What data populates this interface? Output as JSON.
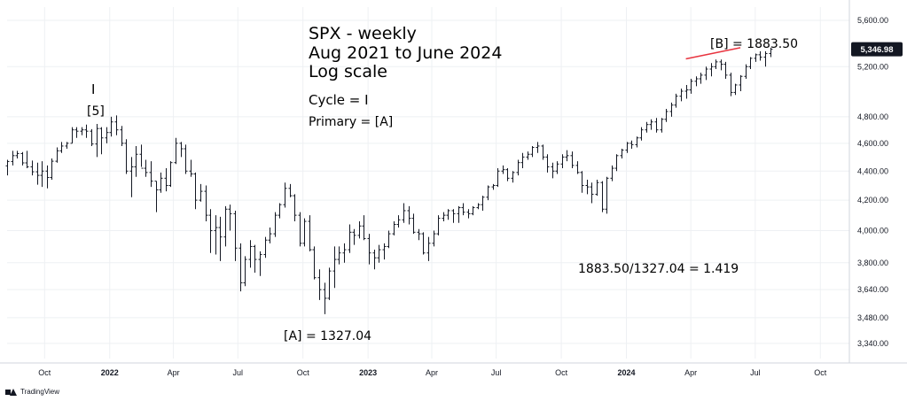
{
  "chart_data": {
    "type": "ohlc",
    "title": "SPX - weekly",
    "subtitle_lines": [
      "Aug 2021 to June 2024",
      "Log scale"
    ],
    "y_scale": "log",
    "ylim": [
      3260,
      5720
    ],
    "x_range": [
      "2021-08-09",
      "2024-11-11"
    ],
    "grid": true,
    "y_ticks": [
      {
        "value": 3340,
        "label": "3,340.00"
      },
      {
        "value": 3480,
        "label": "3,480.00"
      },
      {
        "value": 3640,
        "label": "3,640.00"
      },
      {
        "value": 3800,
        "label": "3,800.00"
      },
      {
        "value": 4000,
        "label": "4,000.00"
      },
      {
        "value": 4200,
        "label": "4,200.00"
      },
      {
        "value": 4400,
        "label": "4,400.00"
      },
      {
        "value": 4600,
        "label": "4,600.00"
      },
      {
        "value": 4800,
        "label": "4,800.00"
      },
      {
        "value": 5200,
        "label": "5,200.00"
      },
      {
        "value": 5600,
        "label": "5,600.00"
      }
    ],
    "x_ticks": [
      {
        "date": "2021-10-01",
        "label": "Oct",
        "bold": false
      },
      {
        "date": "2022-01-01",
        "label": "2022",
        "bold": true
      },
      {
        "date": "2022-04-01",
        "label": "Apr",
        "bold": false
      },
      {
        "date": "2022-07-01",
        "label": "Jul",
        "bold": false
      },
      {
        "date": "2022-10-01",
        "label": "Oct",
        "bold": false
      },
      {
        "date": "2023-01-01",
        "label": "2023",
        "bold": true
      },
      {
        "date": "2023-04-01",
        "label": "Apr",
        "bold": false
      },
      {
        "date": "2023-07-01",
        "label": "Jul",
        "bold": false
      },
      {
        "date": "2023-10-01",
        "label": "Oct",
        "bold": false
      },
      {
        "date": "2024-01-01",
        "label": "2024",
        "bold": true
      },
      {
        "date": "2024-04-01",
        "label": "Apr",
        "bold": false
      },
      {
        "date": "2024-07-01",
        "label": "Jul",
        "bold": false
      },
      {
        "date": "2024-10-01",
        "label": "Oct",
        "bold": false
      }
    ],
    "last_price": {
      "value": 5346.98,
      "label": "5,346.98"
    },
    "series": [
      {
        "start": "2021-08-09",
        "interval_days": 7,
        "color": "#131722",
        "ohlc": [
          [
            4437,
            4480,
            4370,
            4468
          ],
          [
            4468,
            4545,
            4440,
            4510
          ],
          [
            4510,
            4545,
            4490,
            4525
          ],
          [
            4525,
            4536,
            4440,
            4458
          ],
          [
            4458,
            4545,
            4420,
            4430
          ],
          [
            4430,
            4475,
            4370,
            4395
          ],
          [
            4395,
            4460,
            4305,
            4370
          ],
          [
            4370,
            4470,
            4290,
            4400
          ],
          [
            4400,
            4440,
            4280,
            4355
          ],
          [
            4355,
            4490,
            4340,
            4470
          ],
          [
            4470,
            4570,
            4460,
            4545
          ],
          [
            4545,
            4610,
            4530,
            4580
          ],
          [
            4580,
            4610,
            4560,
            4600
          ],
          [
            4600,
            4720,
            4600,
            4700
          ],
          [
            4700,
            4720,
            4640,
            4690
          ],
          [
            4690,
            4720,
            4660,
            4700
          ],
          [
            4700,
            4740,
            4640,
            4690
          ],
          [
            4690,
            4705,
            4580,
            4595
          ],
          [
            4595,
            4745,
            4500,
            4710
          ],
          [
            4710,
            4720,
            4520,
            4640
          ],
          [
            4640,
            4720,
            4600,
            4680
          ],
          [
            4680,
            4800,
            4650,
            4760
          ],
          [
            4760,
            4810,
            4660,
            4700
          ],
          [
            4700,
            4730,
            4580,
            4600
          ],
          [
            4600,
            4630,
            4380,
            4400
          ],
          [
            4400,
            4500,
            4220,
            4430
          ],
          [
            4430,
            4580,
            4360,
            4520
          ],
          [
            4520,
            4590,
            4430,
            4420
          ],
          [
            4420,
            4480,
            4360,
            4390
          ],
          [
            4390,
            4470,
            4290,
            4330
          ],
          [
            4330,
            4330,
            4120,
            4270
          ],
          [
            4270,
            4390,
            4250,
            4350
          ],
          [
            4350,
            4420,
            4260,
            4300
          ],
          [
            4300,
            4470,
            4290,
            4460
          ],
          [
            4460,
            4640,
            4450,
            4600
          ],
          [
            4600,
            4610,
            4500,
            4560
          ],
          [
            4560,
            4590,
            4380,
            4400
          ],
          [
            4400,
            4480,
            4360,
            4380
          ],
          [
            4380,
            4390,
            4140,
            4200
          ],
          [
            4200,
            4310,
            4190,
            4260
          ],
          [
            4260,
            4300,
            4060,
            4100
          ],
          [
            4100,
            4140,
            3860,
            4000
          ],
          [
            4000,
            4100,
            3850,
            4020
          ],
          [
            4020,
            4090,
            3810,
            3960
          ],
          [
            3960,
            4160,
            3900,
            4140
          ],
          [
            4140,
            4170,
            4000,
            4110
          ],
          [
            4110,
            4130,
            3810,
            3890
          ],
          [
            3890,
            3920,
            3630,
            3680
          ],
          [
            3680,
            3840,
            3660,
            3820
          ],
          [
            3820,
            3940,
            3770,
            3900
          ],
          [
            3900,
            3910,
            3740,
            3820
          ],
          [
            3820,
            3870,
            3720,
            3850
          ],
          [
            3850,
            3960,
            3830,
            3940
          ],
          [
            3940,
            4020,
            3920,
            3980
          ],
          [
            3980,
            4120,
            3960,
            4100
          ],
          [
            4100,
            4180,
            4080,
            4170
          ],
          [
            4170,
            4320,
            4150,
            4280
          ],
          [
            4280,
            4310,
            4220,
            4230
          ],
          [
            4230,
            4240,
            4060,
            4100
          ],
          [
            4100,
            4120,
            3900,
            3920
          ],
          [
            3920,
            4080,
            3900,
            4060
          ],
          [
            4060,
            4100,
            3870,
            3880
          ],
          [
            3880,
            3900,
            3700,
            3710
          ],
          [
            3710,
            3760,
            3580,
            3640
          ],
          [
            3640,
            3680,
            3500,
            3590
          ],
          [
            3590,
            3770,
            3580,
            3750
          ],
          [
            3750,
            3900,
            3650,
            3820
          ],
          [
            3820,
            3900,
            3790,
            3860
          ],
          [
            3860,
            3920,
            3800,
            3880
          ],
          [
            3880,
            4040,
            3860,
            3990
          ],
          [
            3990,
            4010,
            3910,
            3970
          ],
          [
            3970,
            4060,
            3950,
            4030
          ],
          [
            4030,
            4100,
            3940,
            3950
          ],
          [
            3950,
            3980,
            3790,
            3860
          ],
          [
            3860,
            3880,
            3760,
            3830
          ],
          [
            3830,
            3910,
            3800,
            3880
          ],
          [
            3880,
            3920,
            3820,
            3900
          ],
          [
            3900,
            4000,
            3890,
            3980
          ],
          [
            3980,
            4060,
            3970,
            4040
          ],
          [
            4040,
            4100,
            4020,
            4070
          ],
          [
            4070,
            4180,
            4050,
            4130
          ],
          [
            4130,
            4160,
            4040,
            4080
          ],
          [
            4080,
            4110,
            3980,
            3990
          ],
          [
            3990,
            4010,
            3940,
            3980
          ],
          [
            3980,
            3990,
            3850,
            3860
          ],
          [
            3860,
            3960,
            3810,
            3920
          ],
          [
            3920,
            4000,
            3900,
            3980
          ],
          [
            3980,
            4100,
            3970,
            4080
          ],
          [
            4080,
            4120,
            4060,
            4100
          ],
          [
            4100,
            4140,
            4070,
            4130
          ],
          [
            4130,
            4140,
            4050,
            4110
          ],
          [
            4110,
            4160,
            4050,
            4150
          ],
          [
            4150,
            4180,
            4100,
            4120
          ],
          [
            4120,
            4140,
            4080,
            4110
          ],
          [
            4110,
            4160,
            4100,
            4150
          ],
          [
            4150,
            4180,
            4140,
            4170
          ],
          [
            4170,
            4230,
            4130,
            4220
          ],
          [
            4220,
            4300,
            4200,
            4290
          ],
          [
            4290,
            4310,
            4270,
            4300
          ],
          [
            4300,
            4420,
            4290,
            4400
          ],
          [
            4400,
            4440,
            4380,
            4410
          ],
          [
            4410,
            4420,
            4330,
            4350
          ],
          [
            4350,
            4400,
            4320,
            4390
          ],
          [
            4390,
            4480,
            4370,
            4460
          ],
          [
            4460,
            4530,
            4420,
            4500
          ],
          [
            4500,
            4540,
            4480,
            4520
          ],
          [
            4520,
            4580,
            4500,
            4570
          ],
          [
            4570,
            4610,
            4530,
            4580
          ],
          [
            4580,
            4590,
            4480,
            4500
          ],
          [
            4500,
            4520,
            4390,
            4430
          ],
          [
            4430,
            4460,
            4350,
            4400
          ],
          [
            4400,
            4470,
            4380,
            4450
          ],
          [
            4450,
            4520,
            4420,
            4500
          ],
          [
            4500,
            4550,
            4470,
            4510
          ],
          [
            4510,
            4540,
            4420,
            4440
          ],
          [
            4440,
            4470,
            4380,
            4390
          ],
          [
            4390,
            4400,
            4250,
            4300
          ],
          [
            4300,
            4340,
            4240,
            4290
          ],
          [
            4290,
            4320,
            4180,
            4240
          ],
          [
            4240,
            4340,
            4230,
            4320
          ],
          [
            4320,
            4330,
            4120,
            4140
          ],
          [
            4140,
            4360,
            4110,
            4350
          ],
          [
            4350,
            4440,
            4330,
            4420
          ],
          [
            4420,
            4520,
            4400,
            4510
          ],
          [
            4510,
            4560,
            4490,
            4550
          ],
          [
            4550,
            4610,
            4530,
            4600
          ],
          [
            4600,
            4620,
            4560,
            4590
          ],
          [
            4590,
            4650,
            4570,
            4640
          ],
          [
            4640,
            4720,
            4620,
            4700
          ],
          [
            4700,
            4760,
            4680,
            4740
          ],
          [
            4740,
            4780,
            4700,
            4760
          ],
          [
            4760,
            4790,
            4680,
            4700
          ],
          [
            4700,
            4790,
            4680,
            4780
          ],
          [
            4780,
            4860,
            4760,
            4840
          ],
          [
            4840,
            4910,
            4800,
            4890
          ],
          [
            4890,
            4980,
            4870,
            4960
          ],
          [
            4960,
            5020,
            4920,
            5000
          ],
          [
            5000,
            5050,
            4940,
            5010
          ],
          [
            5010,
            5100,
            4980,
            5080
          ],
          [
            5080,
            5120,
            5040,
            5100
          ],
          [
            5100,
            5150,
            5060,
            5130
          ],
          [
            5130,
            5200,
            5090,
            5180
          ],
          [
            5180,
            5230,
            5120,
            5200
          ],
          [
            5200,
            5260,
            5180,
            5240
          ],
          [
            5240,
            5260,
            5170,
            5220
          ],
          [
            5220,
            5240,
            5100,
            5130
          ],
          [
            5130,
            5150,
            4960,
            4990
          ],
          [
            4990,
            5060,
            4970,
            5050
          ],
          [
            5050,
            5130,
            5000,
            5120
          ],
          [
            5120,
            5220,
            5100,
            5200
          ],
          [
            5200,
            5280,
            5180,
            5270
          ],
          [
            5270,
            5310,
            5240,
            5300
          ],
          [
            5300,
            5330,
            5250,
            5280
          ],
          [
            5280,
            5330,
            5200,
            5310
          ],
          [
            5310,
            5360,
            5280,
            5346.98
          ]
        ]
      }
    ],
    "annotations": [
      {
        "text": "I",
        "anchor_date": "2021-12-27"
      },
      {
        "text": "[5]",
        "anchor_date": "2021-12-27"
      },
      {
        "text": "[A]  = 1327.04",
        "anchor_date": "2022-10-10"
      },
      {
        "text": "[B] = 1883.50",
        "anchor_date": "2024-05-20"
      },
      {
        "text": "Cycle = I"
      },
      {
        "text": "Primary = [A]"
      },
      {
        "text": "1883.50/1327.04 = 1.419"
      }
    ],
    "trendline": {
      "from": {
        "date": "2024-03-25",
        "value": 5265
      },
      "to": {
        "date": "2024-06-10",
        "value": 5360
      },
      "color": "#e8343f"
    }
  },
  "watermark": {
    "brand_text": "TradingView"
  },
  "colors": {
    "bars": "#131722",
    "grid": "#eef0f3",
    "price_tag": "#131722",
    "trendline": "#e8343f",
    "axis_line": "#d1d4dc"
  }
}
